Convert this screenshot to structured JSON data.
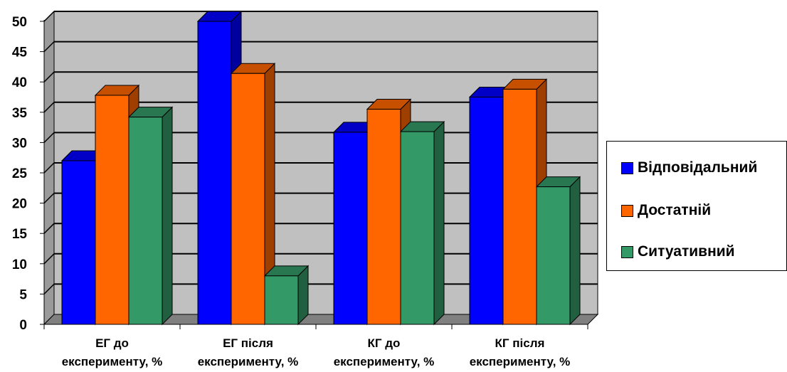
{
  "chart_data": {
    "type": "bar",
    "categories": [
      [
        "ЕГ до",
        "експерименту, %"
      ],
      [
        "ЕГ після",
        "експерименту, %"
      ],
      [
        "КГ до",
        "експерименту, %"
      ],
      [
        "КГ після",
        "експерименту, %"
      ]
    ],
    "series": [
      {
        "name": "Відповідальний",
        "color": "#0000ff",
        "values": [
          27,
          50,
          31.7,
          37.5
        ]
      },
      {
        "name": "Достатній",
        "color": "#ff6600",
        "values": [
          37.8,
          41.4,
          35.5,
          38.8
        ]
      },
      {
        "name": "Ситуативний",
        "color": "#339966",
        "values": [
          34.2,
          8,
          31.8,
          22.7
        ]
      }
    ],
    "ylim": [
      0,
      50
    ],
    "yticks": [
      "0",
      "5",
      "10",
      "15",
      "20",
      "25",
      "30",
      "35",
      "40",
      "45",
      "50"
    ],
    "grid": true,
    "legend_position": "right",
    "plot_background": "#c0c0c0"
  }
}
